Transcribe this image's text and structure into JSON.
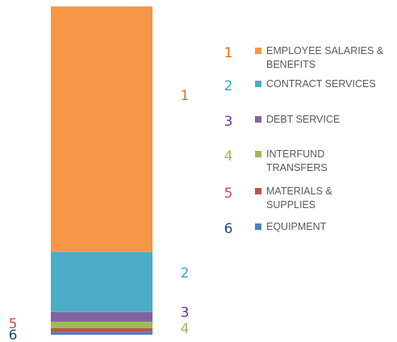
{
  "chart_data": {
    "type": "bar",
    "stacked": true,
    "title": "",
    "xlabel": "",
    "ylabel": "",
    "categories": [
      ""
    ],
    "series": [
      {
        "name": "EMPLOYEE SALARIES & BENEFITS",
        "number": "1",
        "value": 75.5,
        "color": "#F79646",
        "number_color": "#E46C0A"
      },
      {
        "name": "CONTRACT SERVICES",
        "number": "2",
        "value": 18.5,
        "color": "#4BACC6",
        "number_color": "#31A9C4"
      },
      {
        "name": "DEBT SERVICE",
        "number": "3",
        "value": 3.0,
        "color": "#8064A2",
        "number_color": "#7030A0"
      },
      {
        "name": "INTERFUND TRANSFERS",
        "number": "4",
        "value": 2.0,
        "color": "#9BBB59",
        "number_color": "#9BBB59"
      },
      {
        "name": "MATERIALS & SUPPLIES",
        "number": "5",
        "value": 1.2,
        "color": "#C0504D",
        "number_color": "#C0504D"
      },
      {
        "name": "EQUIPMENT",
        "number": "6",
        "value": 0.8,
        "color": "#4F81BD",
        "number_color": "#1F497D"
      }
    ],
    "legend": {
      "position": "right",
      "label_lines": [
        [
          "EMPLOYEE SALARIES &",
          "BENEFITS"
        ],
        [
          "CONTRACT SERVICES"
        ],
        [
          "DEBT SERVICE"
        ],
        [
          "INTERFUND",
          "TRANSFERS"
        ],
        [
          "MATERIALS &",
          "SUPPLIES"
        ],
        [
          "EQUIPMENT"
        ]
      ]
    },
    "grid": false,
    "axes_visible": false
  }
}
